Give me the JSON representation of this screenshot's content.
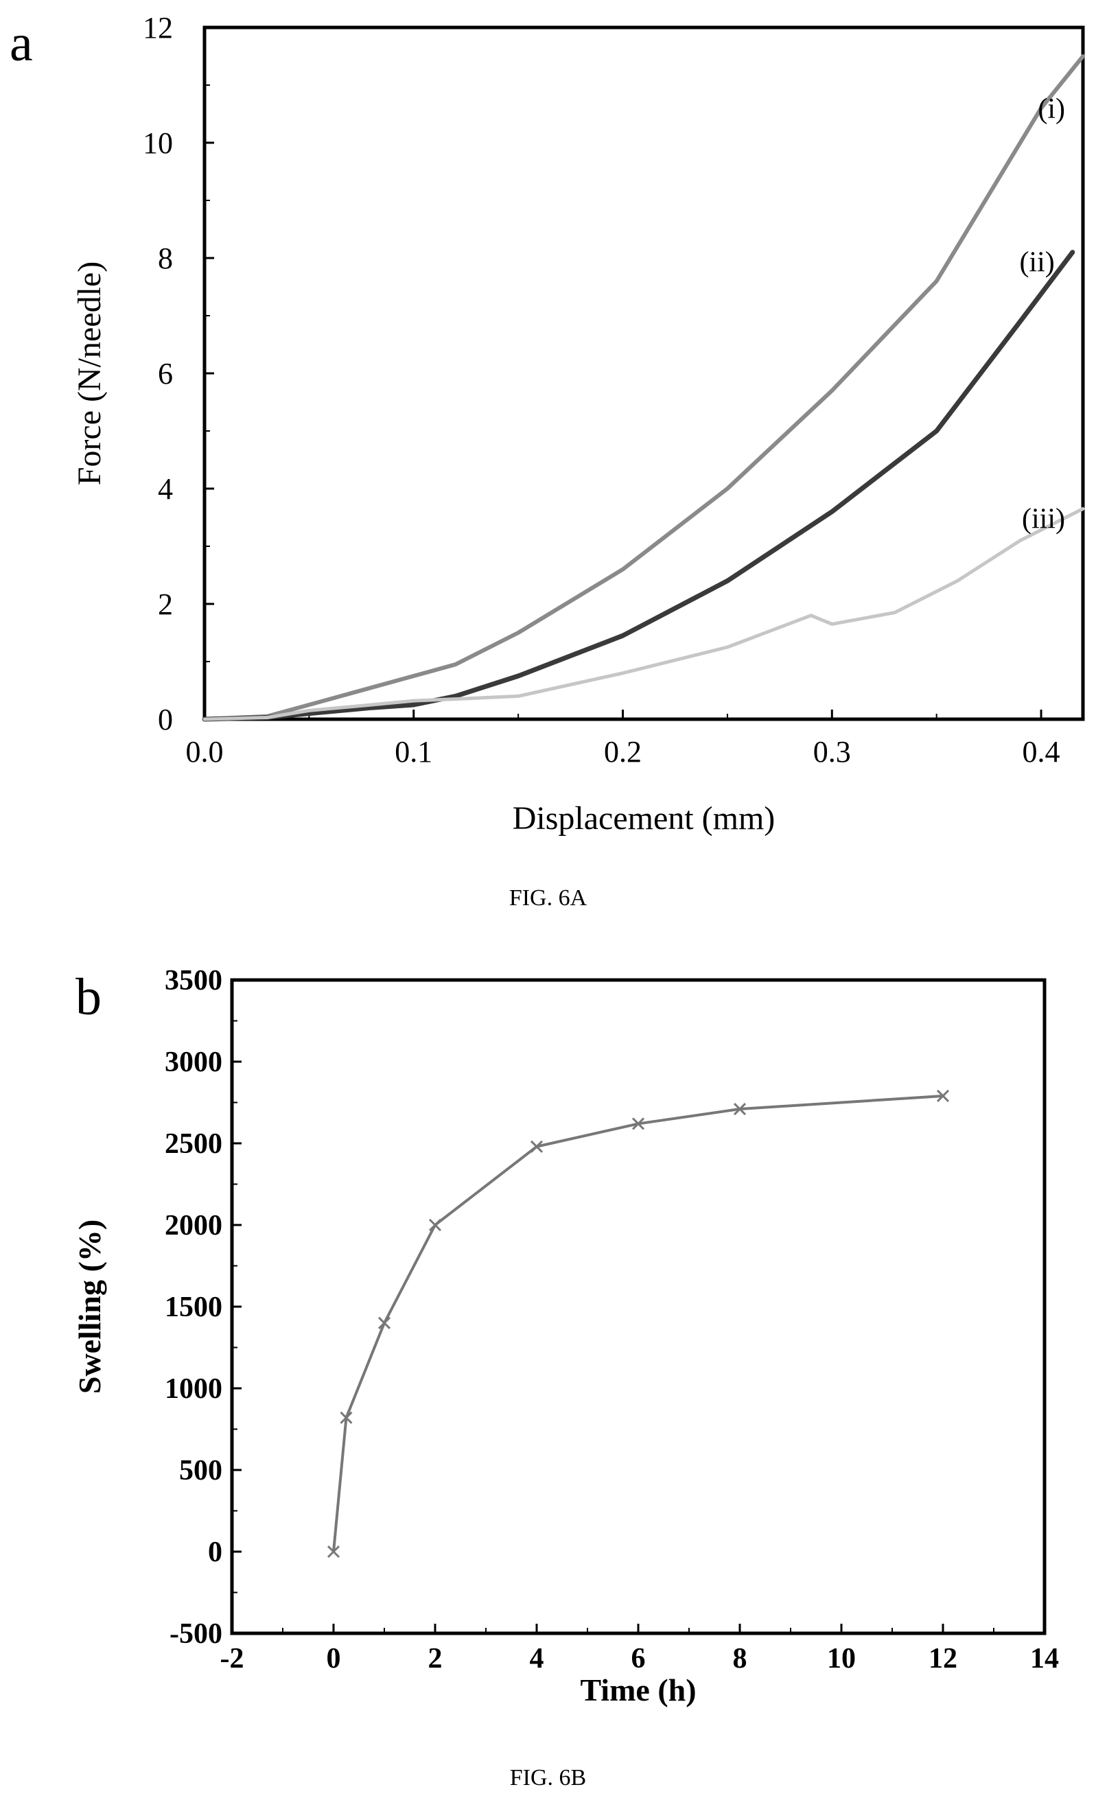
{
  "figures": [
    {
      "panel_letter": "a",
      "caption": "FIG. 6A"
    },
    {
      "panel_letter": "b",
      "caption": "FIG. 6B"
    }
  ],
  "chart_data": [
    {
      "type": "line",
      "panel": "a",
      "xlabel": "Displacement (mm)",
      "ylabel": "Force (N/needle)",
      "xlim": [
        0.0,
        0.42
      ],
      "ylim": [
        0,
        12
      ],
      "xticks": [
        "0.0",
        "0.1",
        "0.2",
        "0.3",
        "0.4"
      ],
      "yticks": [
        "0",
        "2",
        "4",
        "6",
        "8",
        "10",
        "12"
      ],
      "grid": false,
      "colors": {
        "i": "#8a8a8a",
        "ii": "#3a3a3a",
        "iii": "#c6c6c6"
      },
      "series": [
        {
          "name": "(i)",
          "x": [
            0.0,
            0.03,
            0.05,
            0.07,
            0.1,
            0.12,
            0.15,
            0.2,
            0.25,
            0.3,
            0.35,
            0.4,
            0.42
          ],
          "y": [
            0.0,
            0.05,
            0.25,
            0.45,
            0.75,
            0.95,
            1.5,
            2.6,
            4.0,
            5.7,
            7.6,
            10.6,
            11.5
          ]
        },
        {
          "name": "(ii)",
          "x": [
            0.0,
            0.03,
            0.05,
            0.08,
            0.1,
            0.12,
            0.15,
            0.2,
            0.25,
            0.3,
            0.35,
            0.39,
            0.415
          ],
          "y": [
            0.0,
            0.03,
            0.1,
            0.2,
            0.25,
            0.4,
            0.75,
            1.45,
            2.4,
            3.6,
            5.0,
            6.9,
            8.1
          ]
        },
        {
          "name": "(iii)",
          "x": [
            0.0,
            0.03,
            0.05,
            0.08,
            0.1,
            0.12,
            0.15,
            0.2,
            0.25,
            0.29,
            0.3,
            0.33,
            0.36,
            0.39,
            0.42
          ],
          "y": [
            0.0,
            0.03,
            0.15,
            0.25,
            0.32,
            0.35,
            0.4,
            0.8,
            1.25,
            1.8,
            1.65,
            1.85,
            2.4,
            3.1,
            3.65
          ]
        }
      ]
    },
    {
      "type": "line",
      "panel": "b",
      "xlabel": "Time (h)",
      "ylabel": "Swelling (%)",
      "xlim": [
        -2,
        14
      ],
      "ylim": [
        -500,
        3500
      ],
      "xticks": [
        "-2",
        "0",
        "2",
        "4",
        "6",
        "8",
        "10",
        "12",
        "14"
      ],
      "yticks": [
        "-500",
        "0",
        "500",
        "1000",
        "1500",
        "2000",
        "2500",
        "3000",
        "3500"
      ],
      "grid": false,
      "marker": "x",
      "color": "#777777",
      "series": [
        {
          "x": [
            0,
            0.25,
            1,
            2,
            4,
            6,
            8,
            12
          ],
          "y": [
            0,
            820,
            1400,
            2000,
            2480,
            2620,
            2710,
            2790
          ]
        }
      ]
    }
  ]
}
